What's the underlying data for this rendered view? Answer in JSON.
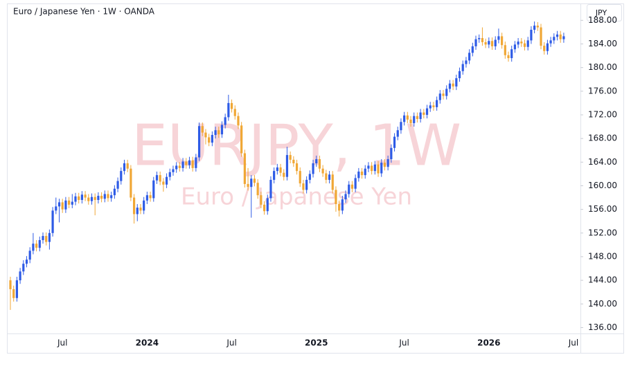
{
  "chart_data": {
    "type": "candlestick",
    "title": "Euro / Japanese Yen · 1W · OANDA",
    "watermark": "EURJPY, 1W",
    "watermark_subtitle": "Euro / Japanese Yen",
    "currency": "JPY",
    "up_color": "#2e5be6",
    "down_color": "#f0a735",
    "grid": false,
    "ylim": [
      135,
      190.5
    ],
    "yticks": [
      {
        "value": 136,
        "label": "136.00"
      },
      {
        "value": 140,
        "label": "140.00"
      },
      {
        "value": 144,
        "label": "144.00"
      },
      {
        "value": 148,
        "label": "148.00"
      },
      {
        "value": 152,
        "label": "152.00"
      },
      {
        "value": 156,
        "label": "156.00"
      },
      {
        "value": 160,
        "label": "160.00"
      },
      {
        "value": 164,
        "label": "164.00"
      },
      {
        "value": 168,
        "label": "168.00"
      },
      {
        "value": 172,
        "label": "172.00"
      },
      {
        "value": 176,
        "label": "176.00"
      },
      {
        "value": 180,
        "label": "180.00"
      },
      {
        "value": 184,
        "label": "184.00"
      },
      {
        "value": 188,
        "label": "188.00"
      }
    ],
    "categories": [
      null,
      null,
      null,
      null,
      null,
      null,
      null,
      null,
      null,
      null,
      null,
      null,
      null,
      null,
      null,
      null,
      "Jul",
      null,
      null,
      null,
      null,
      null,
      null,
      null,
      null,
      null,
      null,
      null,
      null,
      null,
      null,
      null,
      null,
      null,
      null,
      null,
      null,
      null,
      null,
      null,
      null,
      null,
      "2024",
      null,
      null,
      null,
      null,
      null,
      null,
      null,
      null,
      null,
      null,
      null,
      null,
      null,
      null,
      null,
      null,
      null,
      null,
      null,
      null,
      null,
      null,
      null,
      null,
      null,
      "Jul",
      null,
      null,
      null,
      null,
      null,
      null,
      null,
      null,
      null,
      null,
      null,
      null,
      null,
      null,
      null,
      null,
      null,
      null,
      null,
      null,
      null,
      null,
      null,
      null,
      null,
      "2025",
      null,
      null,
      null,
      null,
      null,
      null,
      null,
      null,
      null,
      null,
      null,
      null,
      null,
      null,
      null,
      null,
      null,
      null,
      null,
      null,
      null,
      null,
      null,
      null,
      null,
      null,
      "Jul",
      null,
      null,
      null,
      null,
      null,
      null,
      null,
      null,
      null,
      null,
      null,
      null,
      null,
      null,
      null,
      null,
      null,
      null,
      null,
      null,
      null,
      null,
      null,
      null,
      null,
      "2026",
      null,
      null,
      null,
      null,
      null,
      null,
      null,
      null,
      null,
      null,
      null,
      null,
      null,
      null,
      null,
      null,
      null,
      null,
      null,
      null,
      null,
      null,
      null,
      null,
      null,
      "Jul"
    ],
    "open": [
      144.0,
      142.5,
      141.0,
      144.0,
      145.5,
      146.8,
      147.5,
      149.0,
      150.2,
      149.5,
      150.8,
      151.5,
      150.5,
      152.0,
      155.8,
      156.5,
      157.2,
      156.0,
      157.5,
      156.8,
      157.3,
      158.2,
      157.6,
      158.5,
      158.0,
      157.4,
      158.1,
      157.6,
      158.3,
      157.8,
      158.6,
      157.9,
      158.4,
      159.5,
      160.8,
      162.5,
      163.8,
      162.9,
      158.0,
      155.2,
      156.3,
      155.8,
      157.5,
      158.4,
      157.9,
      160.9,
      161.8,
      160.7,
      160.2,
      161.5,
      162.3,
      162.8,
      163.4,
      163.0,
      164.1,
      163.5,
      164.3,
      163.0,
      164.8,
      170.1,
      169.0,
      168.2,
      167.3,
      168.6,
      169.4,
      168.7,
      170.3,
      171.6,
      174.0,
      173.0,
      171.8,
      170.2,
      165.5,
      160.3,
      159.8,
      161.2,
      160.5,
      158.4,
      156.8,
      155.7,
      157.9,
      161.0,
      162.5,
      163.1,
      162.2,
      161.5,
      165.2,
      164.4,
      163.8,
      162.5,
      160.4,
      159.3,
      161.0,
      162.0,
      163.8,
      164.5,
      162.9,
      162.1,
      161.0,
      161.9,
      159.3,
      156.9,
      155.8,
      157.7,
      158.6,
      160.2,
      159.5,
      161.3,
      162.4,
      161.8,
      162.9,
      163.4,
      162.5,
      163.6,
      162.1,
      163.9,
      163.2,
      164.5,
      166.4,
      168.3,
      169.4,
      170.8,
      171.9,
      171.2,
      170.6,
      171.8,
      171.3,
      172.4,
      172.0,
      173.1,
      173.6,
      173.3,
      174.5,
      175.6,
      175.2,
      176.4,
      177.3,
      176.8,
      178.2,
      179.4,
      180.6,
      181.2,
      182.5,
      183.6,
      184.8,
      185.0,
      184.3,
      183.9,
      184.5,
      183.6,
      184.7,
      185.3,
      183.8,
      182.1,
      181.6,
      183.1,
      183.9,
      184.4,
      184.1,
      183.5,
      184.6,
      186.4,
      187.1,
      186.8,
      183.7,
      182.8,
      184.1,
      184.6,
      185.2,
      185.6,
      184.8,
      null,
      null,
      null
    ],
    "high": [
      144.6,
      143.1,
      144.6,
      146.1,
      147.4,
      148.1,
      149.6,
      152.0,
      150.8,
      151.4,
      152.1,
      152.1,
      152.6,
      156.4,
      158.0,
      157.8,
      157.8,
      158.1,
      158.1,
      158.6,
      158.8,
      158.8,
      159.1,
      159.1,
      158.6,
      158.7,
      158.7,
      158.9,
      158.9,
      159.2,
      159.2,
      159.0,
      160.1,
      161.4,
      163.1,
      164.4,
      164.4,
      163.5,
      158.6,
      156.9,
      156.9,
      158.1,
      159.0,
      159.0,
      161.5,
      162.4,
      162.4,
      161.3,
      162.1,
      162.9,
      163.4,
      164.0,
      164.0,
      164.7,
      164.7,
      164.9,
      164.9,
      165.4,
      170.7,
      170.7,
      169.6,
      168.8,
      169.2,
      170.0,
      170.0,
      170.9,
      172.2,
      175.4,
      174.6,
      173.6,
      172.4,
      170.8,
      166.1,
      163.0,
      161.8,
      161.8,
      161.1,
      159.0,
      157.4,
      158.5,
      161.6,
      163.1,
      163.7,
      163.7,
      162.8,
      166.6,
      165.8,
      165.0,
      164.4,
      163.1,
      161.0,
      161.6,
      162.6,
      164.4,
      165.1,
      165.1,
      163.5,
      162.7,
      162.5,
      162.5,
      159.9,
      157.5,
      158.3,
      159.2,
      160.8,
      160.8,
      161.9,
      163.0,
      163.0,
      163.5,
      164.0,
      164.0,
      164.2,
      164.2,
      164.5,
      164.5,
      165.1,
      167.0,
      168.9,
      170.0,
      171.4,
      172.5,
      172.5,
      171.8,
      172.4,
      172.4,
      173.0,
      173.0,
      173.7,
      174.2,
      174.2,
      175.1,
      176.2,
      176.2,
      177.0,
      177.9,
      177.9,
      178.8,
      180.0,
      181.2,
      181.8,
      183.1,
      184.2,
      185.4,
      185.6,
      186.8,
      184.9,
      185.1,
      185.1,
      185.3,
      186.6,
      185.9,
      184.4,
      182.7,
      183.7,
      184.5,
      185.0,
      185.0,
      184.7,
      185.2,
      187.0,
      187.8,
      187.7,
      187.4,
      184.3,
      184.7,
      185.2,
      185.8,
      186.2,
      186.2,
      185.9,
      null,
      null,
      null
    ],
    "low": [
      139.0,
      140.4,
      140.4,
      143.4,
      144.9,
      146.2,
      146.9,
      148.4,
      148.9,
      148.9,
      150.2,
      149.9,
      149.2,
      151.4,
      155.2,
      153.8,
      155.4,
      155.4,
      156.2,
      156.2,
      156.7,
      157.0,
      157.0,
      157.4,
      156.8,
      156.8,
      155.0,
      157.0,
      157.2,
      157.2,
      157.3,
      157.3,
      157.8,
      158.9,
      160.2,
      161.9,
      162.3,
      157.4,
      153.6,
      154.0,
      155.2,
      155.2,
      156.9,
      157.3,
      157.3,
      160.3,
      160.1,
      159.0,
      159.6,
      160.9,
      161.7,
      162.2,
      162.4,
      162.4,
      162.9,
      162.9,
      162.4,
      162.4,
      164.2,
      168.4,
      167.0,
      166.7,
      166.7,
      168.0,
      168.1,
      168.1,
      169.7,
      171.0,
      172.4,
      171.2,
      169.6,
      164.9,
      159.7,
      159.2,
      154.6,
      159.9,
      157.8,
      156.2,
      155.1,
      155.1,
      157.3,
      160.4,
      161.9,
      161.6,
      160.9,
      160.9,
      163.8,
      163.2,
      161.9,
      159.8,
      158.7,
      158.7,
      160.4,
      161.4,
      163.2,
      162.3,
      161.5,
      160.4,
      160.4,
      158.7,
      155.6,
      154.8,
      155.2,
      157.1,
      158.0,
      158.9,
      158.9,
      160.7,
      161.2,
      161.2,
      162.3,
      161.9,
      161.9,
      161.5,
      161.5,
      162.6,
      162.6,
      163.9,
      165.8,
      167.7,
      168.8,
      170.2,
      170.6,
      170.0,
      170.0,
      170.7,
      170.7,
      171.4,
      171.4,
      172.5,
      172.7,
      172.7,
      173.9,
      174.6,
      174.6,
      175.8,
      176.2,
      176.2,
      177.6,
      178.8,
      180.0,
      180.6,
      181.9,
      183.0,
      184.2,
      183.7,
      183.3,
      183.3,
      183.0,
      183.0,
      184.1,
      183.2,
      181.5,
      181.0,
      181.0,
      182.5,
      183.3,
      183.5,
      182.9,
      182.9,
      184.0,
      185.8,
      186.2,
      183.1,
      182.2,
      182.2,
      183.5,
      184.0,
      184.6,
      184.2,
      184.2,
      null,
      null,
      null
    ],
    "close": [
      142.5,
      141.0,
      144.0,
      145.5,
      146.8,
      147.5,
      149.0,
      150.2,
      149.5,
      150.8,
      151.5,
      150.5,
      152.0,
      155.8,
      156.5,
      157.2,
      156.0,
      157.5,
      156.8,
      157.3,
      158.2,
      157.6,
      158.5,
      158.0,
      157.4,
      158.1,
      157.6,
      158.3,
      157.8,
      158.6,
      157.9,
      158.4,
      159.5,
      160.8,
      162.5,
      163.8,
      162.9,
      158.0,
      155.2,
      156.3,
      155.8,
      157.5,
      158.4,
      157.9,
      160.9,
      161.8,
      160.7,
      160.2,
      161.5,
      162.3,
      162.8,
      163.4,
      163.0,
      164.1,
      163.5,
      164.3,
      163.0,
      164.8,
      170.1,
      169.0,
      168.2,
      167.3,
      168.6,
      169.4,
      168.7,
      170.3,
      171.6,
      174.0,
      173.0,
      171.8,
      170.2,
      165.5,
      160.3,
      159.8,
      161.2,
      160.5,
      158.4,
      156.8,
      155.7,
      157.9,
      161.0,
      162.5,
      163.1,
      162.2,
      161.5,
      165.2,
      164.4,
      163.8,
      162.5,
      160.4,
      159.3,
      161.0,
      162.0,
      163.8,
      164.5,
      162.9,
      162.1,
      161.0,
      161.9,
      159.3,
      156.9,
      155.8,
      157.7,
      158.6,
      160.2,
      159.5,
      161.3,
      162.4,
      161.8,
      162.9,
      163.4,
      162.5,
      163.6,
      162.1,
      163.9,
      163.2,
      164.5,
      166.4,
      168.3,
      169.4,
      170.8,
      171.9,
      171.2,
      170.6,
      171.8,
      171.3,
      172.4,
      172.0,
      173.1,
      173.6,
      173.3,
      174.5,
      175.6,
      175.2,
      176.4,
      177.3,
      176.8,
      178.2,
      179.4,
      180.6,
      181.2,
      182.5,
      183.6,
      184.8,
      185.0,
      184.3,
      183.9,
      184.5,
      183.6,
      184.7,
      185.3,
      183.8,
      182.1,
      181.6,
      183.1,
      183.9,
      184.4,
      184.1,
      183.5,
      184.6,
      186.4,
      187.1,
      186.8,
      183.7,
      182.8,
      184.1,
      184.6,
      185.2,
      185.6,
      184.8,
      185.3,
      null,
      null,
      null
    ]
  }
}
